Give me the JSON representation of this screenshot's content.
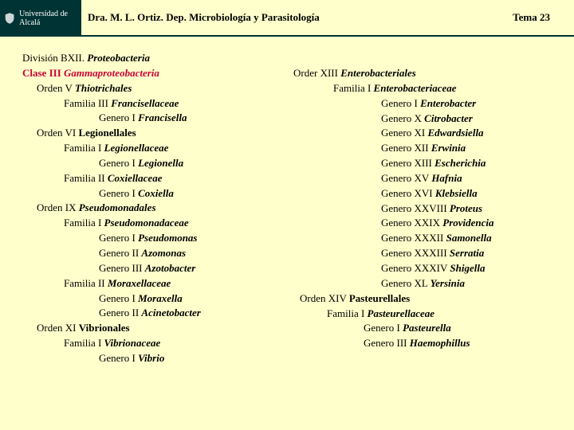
{
  "header": {
    "university": "Universidad de Alcalá",
    "dept": "Dra. M. L. Ortiz. Dep. Microbiología y Parasitología",
    "tema": "Tema 23"
  },
  "left": {
    "division_label": "División BXII. ",
    "division_taxon": "Proteobacteria",
    "clase_label": "Clase III ",
    "clase_taxon": "Gammaproteobacteria",
    "lines": [
      {
        "ind": "ind1",
        "pre": "Orden V ",
        "it": "Thiotrichales"
      },
      {
        "ind": "ind2",
        "pre": "Familia III ",
        "it": "Francisellaceae"
      },
      {
        "ind": "ind3",
        "pre": "Genero I ",
        "it": "Francisella"
      },
      {
        "ind": "ind1",
        "pre": "Orden VI ",
        "bold": "Legionellales"
      },
      {
        "ind": "ind2",
        "pre": "Familia I  ",
        "it": "Legionellaceae"
      },
      {
        "ind": "ind3",
        "pre": "Genero I ",
        "it": "Legionella"
      },
      {
        "ind": "ind2",
        "pre": "Familia II ",
        "it": "Coxiellaceae"
      },
      {
        "ind": "ind3",
        "pre": "Genero I ",
        "it": "Coxiella"
      },
      {
        "ind": "ind1",
        "pre": "Orden IX ",
        "it": "Pseudomonadales"
      },
      {
        "ind": "ind2",
        "pre": "Familia I  ",
        "it": "Pseudomonadaceae"
      },
      {
        "ind": "ind3",
        "pre": "Genero I ",
        "it": "Pseudomonas"
      },
      {
        "ind": "ind3",
        "pre": "Genero II ",
        "it": "Azomonas"
      },
      {
        "ind": "ind3",
        "pre": "Genero III ",
        "it": "Azotobacter"
      },
      {
        "ind": "ind2",
        "pre": "Familia II ",
        "it": "Moraxellaceae"
      },
      {
        "ind": "ind3",
        "pre": "Genero I ",
        "it": "Moraxella"
      },
      {
        "ind": "ind3",
        "pre": "Genero II  ",
        "it": "Acinetobacter"
      },
      {
        "ind": "ind1",
        "pre": "Orden XI ",
        "bold": "Vibrionales"
      },
      {
        "ind": "ind2",
        "pre": "Familia I ",
        "it": "Vibrionaceae"
      },
      {
        "ind": "ind3",
        "pre": "Genero I  ",
        "it": "Vibrio"
      }
    ]
  },
  "right": {
    "lines": [
      {
        "ind": "r-ind1",
        "pre": "Order XIII ",
        "it": "Enterobacteriales"
      },
      {
        "ind": "r-ind2",
        "pre": "Familia I ",
        "it": "Enterobacteriaceae"
      },
      {
        "ind": "r-ind3",
        "pre": "Genero I ",
        "it": "Enterobacter"
      },
      {
        "ind": "r-ind3",
        "pre": "Genero X ",
        "it": "Citrobacter"
      },
      {
        "ind": "r-ind3",
        "pre": "Genero XI ",
        "it": "Edwardsiella"
      },
      {
        "ind": "r-ind3",
        "pre": "Genero XII ",
        "it": "Erwinia"
      },
      {
        "ind": "r-ind3",
        "pre": "Genero XIII ",
        "it": "Escherichia"
      },
      {
        "ind": "r-ind3",
        "pre": "Genero XV ",
        "it": "Hafnia"
      },
      {
        "ind": "r-ind3",
        "pre": "Genero XVI  ",
        "it": "Klebsiella"
      },
      {
        "ind": "r-ind3",
        "pre": "Genero XXVIII ",
        "it": "Proteus"
      },
      {
        "ind": "r-ind3",
        "pre": "Genero XXIX ",
        "it": "Providencia"
      },
      {
        "ind": "r-ind3",
        "pre": "Genero XXXII  ",
        "it": "Samonella"
      },
      {
        "ind": "r-ind3",
        "pre": "Genero XXXIII ",
        "it": "Serratia"
      },
      {
        "ind": "r-ind3",
        "pre": "Genero XXXIV ",
        "it": "Shigella"
      },
      {
        "ind": "r-ind3",
        "pre": "Genero XL ",
        "it": "Yersinia"
      },
      {
        "ind": "r-ind1b",
        "pre": "Orden XIV ",
        "bold": "Pasteurellales"
      },
      {
        "ind": "r-ind2b",
        "pre": "Familia I ",
        "it": "Pasteurellaceae"
      },
      {
        "ind": "r-ind3b",
        "pre": "Genero I ",
        "it": "Pasteurella"
      },
      {
        "ind": "r-ind3b",
        "pre": "Genero III ",
        "it": "Haemophillus"
      }
    ]
  }
}
